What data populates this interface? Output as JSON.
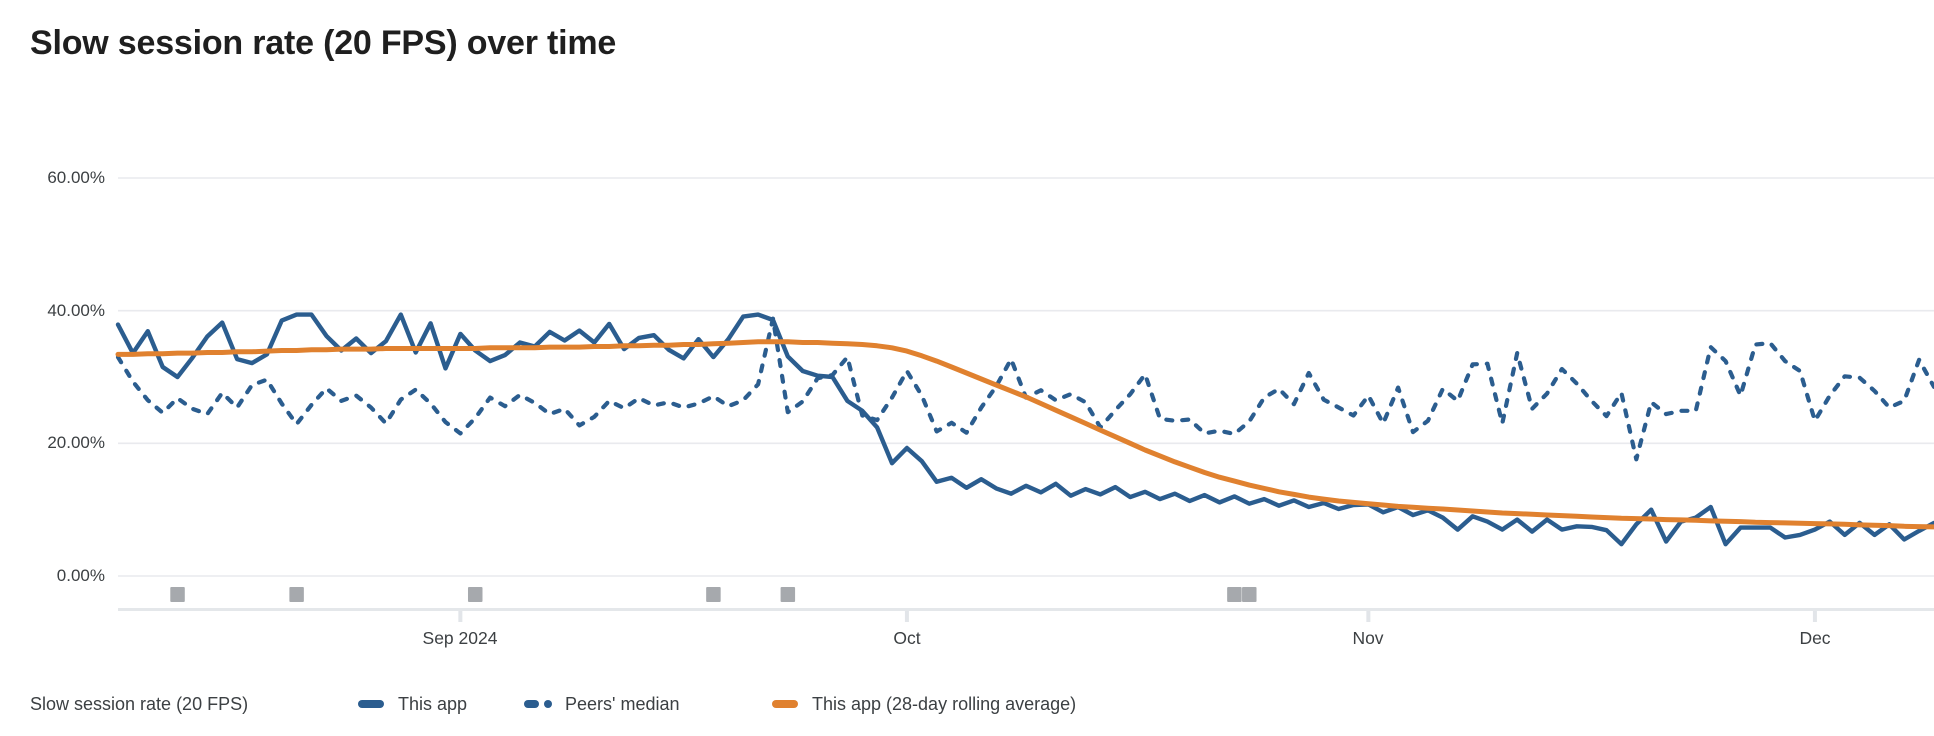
{
  "title": "Slow session rate (20 FPS) over time",
  "colors": {
    "series_blue": "#2B5D8F",
    "series_orange": "#E0812F",
    "gridline": "#E9EAEE",
    "baseline": "#E4E7EA",
    "tick": "#E2E5E9",
    "axis_text": "#3C4043",
    "title_text": "#1F1F1F",
    "release_marker": "#A6A9AD"
  },
  "y_axis": {
    "labels": [
      "60.00%",
      "40.00%",
      "20.00%",
      "0.00%"
    ],
    "values": [
      60,
      40,
      20,
      0
    ]
  },
  "x_axis": {
    "labels": [
      "Sep 2024",
      "Oct",
      "Nov",
      "Dec"
    ],
    "tick_day_indices": [
      23,
      53,
      84,
      114
    ]
  },
  "legend": {
    "series_label": "Slow session rate (20 FPS)",
    "items": [
      {
        "label": "This app",
        "style": "solid",
        "color": "#2B5D8F"
      },
      {
        "label": "Peers' median",
        "style": "dashed",
        "color": "#2B5D8F"
      },
      {
        "label": "This app (28-day rolling average)",
        "style": "solid",
        "color": "#E0812F"
      }
    ]
  },
  "release_markers": {
    "day_indices": [
      4,
      12,
      24,
      40,
      45,
      75,
      76
    ]
  },
  "chart_data": {
    "type": "line",
    "title": "Slow session rate (20 FPS) over time",
    "x_unit": "day",
    "x_start_date": "2024-08-09",
    "x_end_date": "2024-12-09",
    "x_month_tick_labels": [
      "Sep 2024",
      "Oct",
      "Nov",
      "Dec"
    ],
    "ylim": [
      0,
      60
    ],
    "y_tick_format": "percent",
    "grid": "horizontal",
    "legend_position": "bottom",
    "series": [
      {
        "name": "This app",
        "style": "solid",
        "color": "#2B5D8F",
        "values": [
          37.9,
          33.6,
          36.9,
          31.5,
          30.0,
          32.9,
          36.1,
          38.2,
          32.7,
          32.1,
          33.4,
          38.5,
          39.4,
          39.4,
          36.2,
          34.0,
          35.8,
          33.6,
          35.4,
          39.4,
          33.7,
          38.1,
          31.3,
          36.5,
          34.0,
          32.4,
          33.3,
          35.2,
          34.6,
          36.8,
          35.5,
          37.0,
          35.2,
          38.0,
          34.2,
          35.9,
          36.3,
          34.1,
          32.8,
          35.7,
          33.0,
          35.7,
          39.1,
          39.4,
          38.6,
          33.1,
          30.9,
          30.2,
          30.0,
          26.4,
          24.9,
          22.4,
          17.0,
          19.3,
          17.3,
          14.2,
          14.8,
          13.3,
          14.6,
          13.2,
          12.4,
          13.6,
          12.6,
          13.9,
          12.1,
          13.1,
          12.3,
          13.4,
          11.9,
          12.7,
          11.6,
          12.4,
          11.3,
          12.2,
          11.1,
          12.0,
          10.9,
          11.6,
          10.6,
          11.4,
          10.4,
          11.0,
          10.1,
          10.7,
          10.8,
          9.6,
          10.4,
          9.2,
          9.9,
          8.8,
          7.0,
          9.0,
          8.2,
          7.0,
          8.5,
          6.7,
          8.5,
          7.0,
          7.5,
          7.4,
          6.9,
          4.8,
          7.8,
          10.0,
          5.2,
          8.2,
          8.8,
          10.4,
          4.8,
          7.3,
          7.3,
          7.3,
          5.8,
          6.2,
          7.0,
          8.2,
          6.2,
          8.0,
          6.2,
          7.8,
          5.5,
          6.8,
          8.0
        ]
      },
      {
        "name": "Peers' median",
        "style": "dashed",
        "color": "#2B5D8F",
        "values": [
          33.0,
          29.3,
          26.5,
          24.6,
          26.8,
          25.2,
          24.4,
          27.6,
          25.4,
          28.8,
          29.6,
          26.0,
          22.9,
          25.8,
          28.3,
          26.4,
          27.2,
          25.4,
          23.0,
          26.6,
          28.1,
          26.0,
          23.2,
          21.5,
          23.8,
          26.9,
          25.6,
          27.3,
          26.1,
          24.4,
          25.2,
          22.7,
          24.0,
          26.4,
          25.3,
          26.8,
          25.7,
          26.2,
          25.4,
          26.0,
          27.1,
          25.6,
          26.5,
          28.9,
          38.8,
          24.7,
          26.3,
          29.8,
          30.3,
          33.0,
          24.2,
          23.5,
          26.9,
          30.9,
          27.2,
          21.8,
          23.1,
          21.6,
          25.4,
          28.6,
          32.7,
          26.9,
          28.0,
          26.5,
          27.4,
          26.2,
          22.4,
          25.0,
          27.4,
          30.4,
          23.7,
          23.4,
          23.6,
          21.5,
          21.9,
          21.4,
          23.3,
          26.9,
          28.2,
          25.9,
          30.6,
          26.6,
          25.4,
          24.2,
          27.2,
          23.0,
          28.4,
          21.7,
          23.4,
          28.2,
          26.4,
          31.9,
          32.0,
          23.0,
          33.6,
          25.2,
          27.5,
          31.2,
          29.0,
          26.4,
          24.1,
          27.6,
          17.6,
          26.2,
          24.4,
          24.9,
          24.9,
          34.5,
          32.4,
          27.2,
          34.9,
          35.1,
          32.4,
          30.9,
          23.4,
          27.2,
          30.1,
          29.9,
          27.9,
          25.4,
          26.4,
          32.6,
          28.5
        ]
      },
      {
        "name": "This app (28-day rolling average)",
        "style": "solid",
        "color": "#E0812F",
        "values": [
          33.4,
          33.4,
          33.5,
          33.5,
          33.6,
          33.6,
          33.7,
          33.7,
          33.8,
          33.8,
          33.9,
          34.0,
          34.0,
          34.1,
          34.1,
          34.2,
          34.2,
          34.2,
          34.3,
          34.3,
          34.3,
          34.3,
          34.3,
          34.3,
          34.3,
          34.4,
          34.4,
          34.4,
          34.4,
          34.5,
          34.5,
          34.5,
          34.6,
          34.6,
          34.7,
          34.7,
          34.8,
          34.8,
          34.9,
          34.9,
          35.0,
          35.1,
          35.2,
          35.3,
          35.3,
          35.3,
          35.2,
          35.2,
          35.1,
          35.0,
          34.9,
          34.7,
          34.4,
          33.9,
          33.2,
          32.4,
          31.5,
          30.6,
          29.7,
          28.8,
          27.9,
          27.0,
          26.0,
          25.0,
          24.0,
          23.0,
          22.0,
          21.0,
          20.0,
          19.0,
          18.1,
          17.2,
          16.4,
          15.6,
          14.9,
          14.3,
          13.7,
          13.2,
          12.7,
          12.3,
          11.9,
          11.6,
          11.3,
          11.1,
          10.9,
          10.7,
          10.5,
          10.35,
          10.2,
          10.1,
          9.95,
          9.8,
          9.65,
          9.5,
          9.4,
          9.3,
          9.2,
          9.1,
          9.0,
          8.9,
          8.8,
          8.7,
          8.65,
          8.6,
          8.5,
          8.45,
          8.4,
          8.3,
          8.25,
          8.2,
          8.1,
          8.05,
          8.0,
          7.95,
          7.9,
          7.85,
          7.8,
          7.7,
          7.65,
          7.6,
          7.5,
          7.45,
          7.4
        ]
      }
    ]
  }
}
